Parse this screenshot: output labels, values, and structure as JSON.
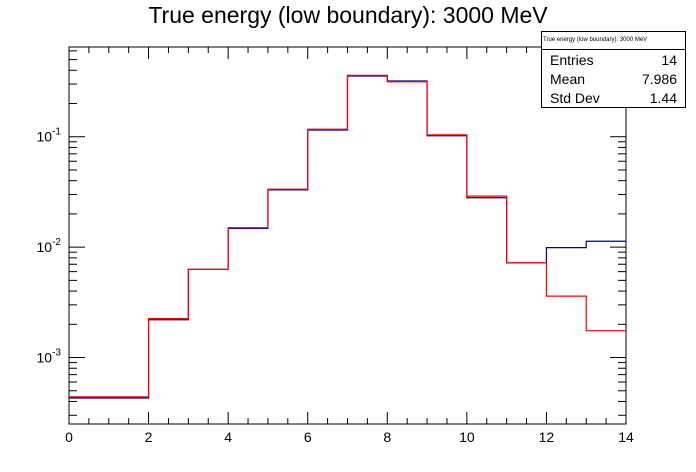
{
  "title": "True energy (low boundary): 3000 MeV",
  "stats": {
    "title": "True energy (low boundary): 3000 MeV",
    "rows": [
      {
        "label": "Entries",
        "value": "14"
      },
      {
        "label": "Mean",
        "value": "7.986"
      },
      {
        "label": "Std Dev",
        "value": "1.44"
      }
    ]
  },
  "colors": {
    "series1": "#000099",
    "series2": "#ff0000"
  },
  "chart_data": {
    "type": "line",
    "style": "step-histogram",
    "title": "True energy (low boundary): 3000 MeV",
    "xlabel": "",
    "ylabel": "",
    "xlim": [
      0,
      14
    ],
    "ylim": [
      0.00025,
      0.65
    ],
    "yscale": "log",
    "x_ticks": [
      "0",
      "2",
      "4",
      "6",
      "8",
      "10",
      "12",
      "14"
    ],
    "y_ticks": [
      "10^-3",
      "10^-2",
      "10^-1"
    ],
    "bin_edges": [
      0,
      2,
      3,
      4,
      5,
      6,
      7,
      8,
      9,
      10,
      11,
      12,
      13,
      14
    ],
    "series": [
      {
        "values": [
          0.00043,
          0.0022,
          0.0063,
          0.0148,
          0.033,
          0.115,
          0.355,
          0.32,
          0.102,
          0.028,
          0.0072,
          0.0099,
          0.0113
        ]
      },
      {
        "values": [
          0.00044,
          0.00225,
          0.0063,
          0.015,
          0.0335,
          0.117,
          0.36,
          0.315,
          0.104,
          0.029,
          0.0072,
          0.0036,
          0.00175
        ]
      }
    ]
  }
}
